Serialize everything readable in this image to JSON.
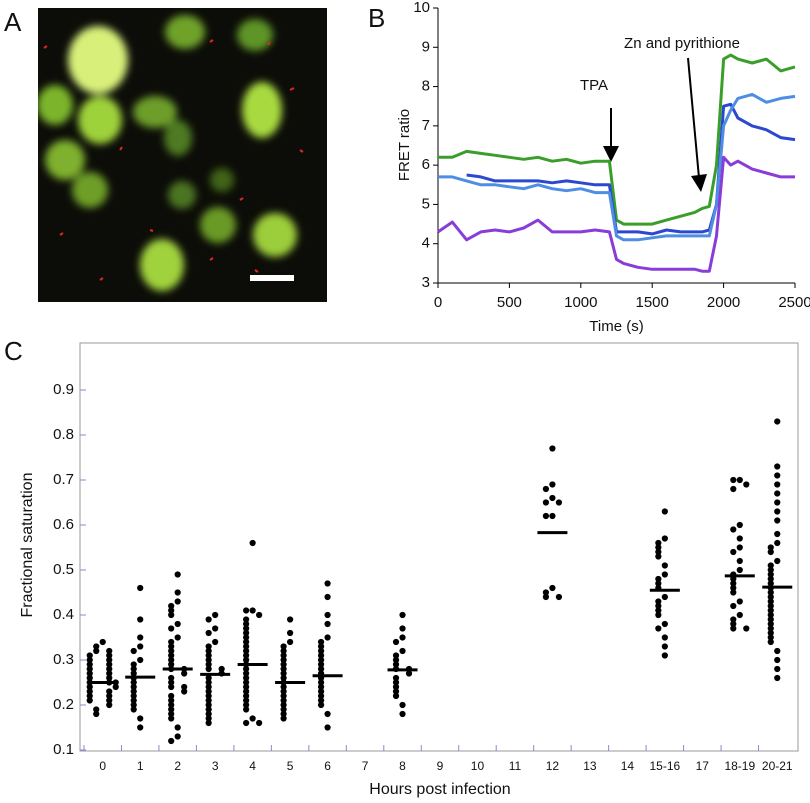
{
  "chart_data": [
    {
      "type": "image",
      "label": "A"
    },
    {
      "type": "line",
      "label": "B",
      "xlabel": "Time (s)",
      "ylabel": "FRET ratio",
      "xlim": [
        0,
        2500
      ],
      "xticks": [
        0,
        500,
        1000,
        1500,
        2000,
        2500
      ],
      "ylim": [
        3,
        10
      ],
      "yticks": [
        3,
        4,
        5,
        6,
        7,
        8,
        9,
        10
      ],
      "annotations": [
        "TPA",
        "Zn and pyrithione"
      ],
      "x": [
        0,
        100,
        200,
        300,
        400,
        500,
        600,
        700,
        800,
        900,
        1000,
        1100,
        1200,
        1250,
        1300,
        1400,
        1500,
        1600,
        1700,
        1800,
        1850,
        1900,
        1950,
        2000,
        2050,
        2100,
        2200,
        2300,
        2400,
        2500
      ],
      "series": [
        {
          "color": "#3a9e2a",
          "values": [
            6.2,
            6.2,
            6.35,
            6.3,
            6.25,
            6.2,
            6.15,
            6.2,
            6.1,
            6.15,
            6.05,
            6.1,
            6.1,
            4.6,
            4.5,
            4.5,
            4.5,
            4.6,
            4.7,
            4.8,
            4.9,
            4.95,
            6.0,
            8.7,
            8.8,
            8.7,
            8.6,
            8.7,
            8.4,
            8.5
          ]
        },
        {
          "color": "#2b48cf",
          "values": [
            null,
            null,
            5.75,
            5.7,
            5.6,
            5.6,
            5.6,
            5.6,
            5.55,
            5.6,
            5.55,
            5.5,
            5.5,
            4.3,
            4.3,
            4.3,
            4.25,
            4.35,
            4.3,
            4.3,
            4.3,
            4.35,
            5.0,
            7.5,
            7.55,
            7.2,
            7.0,
            6.9,
            6.7,
            6.65
          ]
        },
        {
          "color": "#4d8ee3",
          "values": [
            5.7,
            5.7,
            5.6,
            5.5,
            5.5,
            5.45,
            5.4,
            5.5,
            5.4,
            5.35,
            5.4,
            5.3,
            5.3,
            4.2,
            4.1,
            4.1,
            4.15,
            4.2,
            4.2,
            4.2,
            4.2,
            4.2,
            5.0,
            7.0,
            7.4,
            7.7,
            7.8,
            7.6,
            7.7,
            7.75
          ]
        },
        {
          "color": "#8a3cd8",
          "values": [
            4.3,
            4.55,
            4.1,
            4.3,
            4.35,
            4.3,
            4.4,
            4.6,
            4.3,
            4.3,
            4.3,
            4.35,
            4.3,
            3.6,
            3.5,
            3.4,
            3.35,
            3.35,
            3.35,
            3.35,
            3.3,
            3.3,
            4.2,
            6.2,
            6.0,
            6.1,
            5.9,
            5.8,
            5.7,
            5.7
          ]
        }
      ]
    },
    {
      "type": "strip",
      "label": "C",
      "xlabel": "Hours post infection",
      "ylabel": "Fractional saturation",
      "ylim": [
        0.1,
        1.0
      ],
      "yticks": [
        0.1,
        0.2,
        0.3,
        0.4,
        0.5,
        0.6,
        0.7,
        0.8,
        0.9
      ],
      "color": "#000000",
      "categories": [
        "0",
        "1",
        "2",
        "3",
        "4",
        "5",
        "6",
        "7",
        "8",
        "9",
        "10",
        "11",
        "12",
        "13",
        "14",
        "15-16",
        "17",
        "18-19",
        "20-21"
      ],
      "means": [
        0.25,
        0.262,
        0.28,
        0.268,
        0.29,
        0.25,
        0.265,
        null,
        0.278,
        null,
        null,
        null,
        0.583,
        null,
        null,
        0.455,
        null,
        0.487,
        0.462
      ],
      "values": [
        [
          0.34,
          0.33,
          0.32,
          0.32,
          0.31,
          0.31,
          0.3,
          0.3,
          0.29,
          0.29,
          0.28,
          0.28,
          0.27,
          0.27,
          0.26,
          0.26,
          0.25,
          0.25,
          0.25,
          0.24,
          0.24,
          0.23,
          0.23,
          0.22,
          0.22,
          0.21,
          0.21,
          0.2,
          0.19,
          0.18
        ],
        [
          0.46,
          0.39,
          0.35,
          0.33,
          0.32,
          0.3,
          0.29,
          0.28,
          0.27,
          0.26,
          0.25,
          0.24,
          0.23,
          0.22,
          0.21,
          0.2,
          0.19,
          0.17,
          0.15
        ],
        [
          0.49,
          0.45,
          0.43,
          0.42,
          0.41,
          0.4,
          0.38,
          0.37,
          0.35,
          0.34,
          0.33,
          0.32,
          0.31,
          0.3,
          0.29,
          0.28,
          0.28,
          0.27,
          0.26,
          0.25,
          0.24,
          0.24,
          0.23,
          0.22,
          0.21,
          0.2,
          0.19,
          0.18,
          0.17,
          0.15,
          0.13,
          0.12
        ],
        [
          0.4,
          0.39,
          0.37,
          0.36,
          0.34,
          0.33,
          0.32,
          0.31,
          0.3,
          0.29,
          0.28,
          0.28,
          0.27,
          0.26,
          0.25,
          0.24,
          0.23,
          0.22,
          0.21,
          0.2,
          0.19,
          0.18,
          0.17,
          0.16
        ],
        [
          0.56,
          0.41,
          0.41,
          0.4,
          0.39,
          0.38,
          0.37,
          0.36,
          0.35,
          0.34,
          0.33,
          0.32,
          0.31,
          0.3,
          0.29,
          0.28,
          0.27,
          0.26,
          0.25,
          0.24,
          0.23,
          0.22,
          0.21,
          0.2,
          0.19,
          0.17,
          0.16,
          0.16
        ],
        [
          0.39,
          0.36,
          0.34,
          0.33,
          0.32,
          0.31,
          0.3,
          0.29,
          0.28,
          0.27,
          0.26,
          0.25,
          0.24,
          0.23,
          0.22,
          0.21,
          0.2,
          0.19,
          0.18,
          0.17
        ],
        [
          0.47,
          0.44,
          0.4,
          0.38,
          0.35,
          0.34,
          0.33,
          0.32,
          0.31,
          0.3,
          0.29,
          0.28,
          0.27,
          0.26,
          0.25,
          0.24,
          0.23,
          0.22,
          0.21,
          0.2,
          0.18,
          0.15
        ],
        [],
        [
          0.4,
          0.37,
          0.35,
          0.34,
          0.32,
          0.31,
          0.3,
          0.29,
          0.28,
          0.28,
          0.27,
          0.26,
          0.25,
          0.24,
          0.23,
          0.22,
          0.2,
          0.18
        ],
        [],
        [],
        [],
        [
          0.77,
          0.69,
          0.68,
          0.66,
          0.65,
          0.65,
          0.62,
          0.62,
          0.46,
          0.45,
          0.44,
          0.44
        ],
        [],
        [],
        [
          0.63,
          0.57,
          0.56,
          0.55,
          0.54,
          0.53,
          0.51,
          0.49,
          0.48,
          0.47,
          0.46,
          0.44,
          0.43,
          0.42,
          0.41,
          0.4,
          0.38,
          0.37,
          0.35,
          0.33,
          0.31
        ],
        [],
        [
          0.7,
          0.7,
          0.69,
          0.68,
          0.6,
          0.59,
          0.57,
          0.55,
          0.54,
          0.52,
          0.5,
          0.49,
          0.48,
          0.47,
          0.46,
          0.45,
          0.43,
          0.42,
          0.4,
          0.39,
          0.38,
          0.37,
          0.37
        ],
        [
          0.83,
          0.73,
          0.71,
          0.69,
          0.67,
          0.65,
          0.63,
          0.61,
          0.58,
          0.56,
          0.55,
          0.54,
          0.52,
          0.51,
          0.5,
          0.49,
          0.48,
          0.47,
          0.46,
          0.45,
          0.44,
          0.43,
          0.42,
          0.41,
          0.4,
          0.39,
          0.38,
          0.37,
          0.36,
          0.35,
          0.34,
          0.32,
          0.3,
          0.28,
          0.26
        ]
      ]
    }
  ]
}
